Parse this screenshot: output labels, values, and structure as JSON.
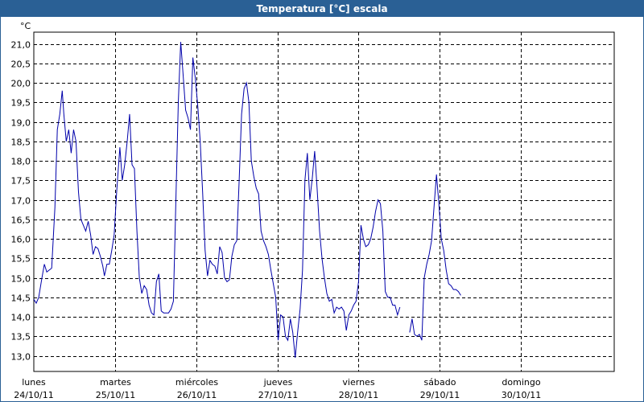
{
  "window": {
    "title": "Temperatura [°C] escala"
  },
  "chart_data": {
    "type": "line",
    "title": "Temperatura [°C] escala",
    "ylabel": "°C",
    "xlabel": "",
    "ylim": [
      12.6,
      21.3
    ],
    "xlim": [
      0,
      7.15
    ],
    "y_ticks": [
      "13,0",
      "13,5",
      "14,0",
      "14,5",
      "15,0",
      "15,5",
      "16,0",
      "16,5",
      "17,0",
      "17,5",
      "18,0",
      "18,5",
      "19,0",
      "19,5",
      "20,0",
      "20,5",
      "21,0"
    ],
    "y_tick_values": [
      13.0,
      13.5,
      14.0,
      14.5,
      15.0,
      15.5,
      16.0,
      16.5,
      17.0,
      17.5,
      18.0,
      18.5,
      19.0,
      19.5,
      20.0,
      20.5,
      21.0
    ],
    "x_ticks": [
      {
        "day": "lunes",
        "date": "24/10/11",
        "x": 0
      },
      {
        "day": "martes",
        "date": "25/10/11",
        "x": 1
      },
      {
        "day": "miércoles",
        "date": "26/10/11",
        "x": 2
      },
      {
        "day": "jueves",
        "date": "27/10/11",
        "x": 3
      },
      {
        "day": "viernes",
        "date": "28/10/11",
        "x": 4
      },
      {
        "day": "sábado",
        "date": "29/10/11",
        "x": 5
      },
      {
        "day": "domingo",
        "date": "30/10/11",
        "x": 6
      }
    ],
    "grid": true,
    "series": [
      {
        "color": "#0000aa",
        "segments": [
          [
            [
              0.0,
              14.45
            ],
            [
              0.03,
              14.35
            ],
            [
              0.06,
              14.5
            ],
            [
              0.1,
              15.0
            ],
            [
              0.13,
              15.35
            ],
            [
              0.16,
              15.15
            ],
            [
              0.19,
              15.2
            ],
            [
              0.22,
              15.25
            ],
            [
              0.26,
              16.8
            ],
            [
              0.29,
              18.8
            ],
            [
              0.32,
              19.2
            ],
            [
              0.35,
              19.8
            ],
            [
              0.37,
              19.2
            ],
            [
              0.4,
              18.5
            ],
            [
              0.43,
              18.8
            ],
            [
              0.46,
              18.2
            ],
            [
              0.49,
              18.8
            ],
            [
              0.52,
              18.5
            ],
            [
              0.55,
              17.2
            ],
            [
              0.58,
              16.5
            ],
            [
              0.61,
              16.35
            ],
            [
              0.64,
              16.2
            ],
            [
              0.67,
              16.45
            ],
            [
              0.7,
              16.1
            ],
            [
              0.73,
              15.6
            ],
            [
              0.76,
              15.8
            ],
            [
              0.79,
              15.75
            ],
            [
              0.82,
              15.55
            ],
            [
              0.85,
              15.3
            ],
            [
              0.87,
              15.05
            ],
            [
              0.9,
              15.35
            ],
            [
              0.93,
              15.35
            ],
            [
              0.96,
              15.7
            ],
            [
              0.99,
              16.1
            ],
            [
              1.02,
              17.2
            ],
            [
              1.06,
              18.35
            ],
            [
              1.09,
              17.5
            ],
            [
              1.12,
              17.9
            ],
            [
              1.15,
              18.5
            ],
            [
              1.18,
              19.2
            ],
            [
              1.21,
              17.9
            ],
            [
              1.24,
              17.8
            ],
            [
              1.27,
              16.2
            ],
            [
              1.3,
              15.0
            ],
            [
              1.33,
              14.6
            ],
            [
              1.36,
              14.8
            ],
            [
              1.39,
              14.7
            ],
            [
              1.42,
              14.3
            ],
            [
              1.45,
              14.1
            ],
            [
              1.48,
              14.05
            ],
            [
              1.51,
              14.9
            ],
            [
              1.54,
              15.1
            ],
            [
              1.57,
              14.15
            ],
            [
              1.6,
              14.1
            ],
            [
              1.63,
              14.1
            ],
            [
              1.66,
              14.1
            ],
            [
              1.69,
              14.2
            ],
            [
              1.72,
              14.4
            ],
            [
              1.75,
              17.0
            ],
            [
              1.78,
              19.5
            ],
            [
              1.81,
              21.05
            ],
            [
              1.84,
              20.2
            ],
            [
              1.87,
              19.3
            ],
            [
              1.9,
              19.1
            ],
            [
              1.93,
              18.8
            ],
            [
              1.96,
              20.65
            ],
            [
              1.99,
              20.1
            ],
            [
              2.02,
              19.4
            ],
            [
              2.05,
              18.5
            ],
            [
              2.08,
              17.2
            ],
            [
              2.11,
              15.7
            ],
            [
              2.14,
              15.05
            ],
            [
              2.17,
              15.45
            ],
            [
              2.2,
              15.35
            ],
            [
              2.23,
              15.3
            ],
            [
              2.26,
              15.1
            ],
            [
              2.29,
              15.8
            ],
            [
              2.32,
              15.65
            ],
            [
              2.35,
              15.0
            ],
            [
              2.38,
              14.9
            ],
            [
              2.41,
              14.95
            ],
            [
              2.44,
              15.55
            ],
            [
              2.47,
              15.85
            ],
            [
              2.5,
              15.95
            ],
            [
              2.53,
              17.5
            ],
            [
              2.56,
              19.2
            ],
            [
              2.59,
              19.85
            ],
            [
              2.62,
              20.0
            ],
            [
              2.65,
              19.5
            ],
            [
              2.68,
              18.0
            ],
            [
              2.71,
              17.6
            ],
            [
              2.74,
              17.3
            ],
            [
              2.77,
              17.15
            ],
            [
              2.8,
              16.2
            ],
            [
              2.83,
              15.95
            ],
            [
              2.86,
              15.8
            ],
            [
              2.89,
              15.6
            ],
            [
              2.92,
              15.2
            ],
            [
              2.95,
              14.85
            ],
            [
              2.98,
              14.5
            ],
            [
              3.01,
              13.4
            ],
            [
              3.04,
              14.05
            ],
            [
              3.07,
              14.0
            ],
            [
              3.1,
              13.5
            ],
            [
              3.13,
              13.4
            ],
            [
              3.16,
              13.95
            ],
            [
              3.19,
              13.6
            ],
            [
              3.22,
              12.95
            ],
            [
              3.25,
              13.6
            ],
            [
              3.28,
              14.2
            ],
            [
              3.31,
              15.2
            ],
            [
              3.34,
              17.5
            ],
            [
              3.37,
              18.2
            ],
            [
              3.4,
              17.0
            ],
            [
              3.43,
              17.55
            ],
            [
              3.46,
              18.25
            ],
            [
              3.49,
              17.3
            ],
            [
              3.52,
              16.2
            ],
            [
              3.55,
              15.5
            ],
            [
              3.58,
              15.0
            ],
            [
              3.61,
              14.6
            ],
            [
              3.64,
              14.4
            ],
            [
              3.67,
              14.45
            ],
            [
              3.7,
              14.1
            ],
            [
              3.73,
              14.25
            ],
            [
              3.76,
              14.2
            ],
            [
              3.79,
              14.25
            ],
            [
              3.82,
              14.15
            ],
            [
              3.85,
              13.65
            ],
            [
              3.88,
              14.05
            ],
            [
              3.91,
              14.15
            ],
            [
              3.94,
              14.3
            ],
            [
              3.97,
              14.4
            ],
            [
              4.0,
              14.9
            ],
            [
              4.03,
              16.35
            ],
            [
              4.06,
              16.0
            ],
            [
              4.09,
              15.8
            ],
            [
              4.12,
              15.85
            ],
            [
              4.15,
              16.0
            ],
            [
              4.18,
              16.3
            ],
            [
              4.21,
              16.7
            ],
            [
              4.24,
              17.0
            ],
            [
              4.27,
              16.9
            ],
            [
              4.3,
              16.2
            ],
            [
              4.33,
              14.65
            ],
            [
              4.36,
              14.5
            ],
            [
              4.39,
              14.5
            ],
            [
              4.42,
              14.3
            ],
            [
              4.45,
              14.3
            ],
            [
              4.48,
              14.05
            ],
            [
              4.51,
              14.25
            ]
          ],
          [
            [
              4.63,
              13.6
            ],
            [
              4.66,
              13.95
            ],
            [
              4.69,
              13.55
            ],
            [
              4.72,
              13.5
            ],
            [
              4.75,
              13.55
            ],
            [
              4.78,
              13.4
            ],
            [
              4.81,
              15.0
            ],
            [
              4.84,
              15.35
            ],
            [
              4.87,
              15.6
            ],
            [
              4.9,
              15.95
            ],
            [
              4.93,
              16.8
            ],
            [
              4.96,
              17.65
            ],
            [
              4.99,
              16.9
            ],
            [
              5.02,
              16.0
            ],
            [
              5.05,
              15.7
            ],
            [
              5.08,
              15.2
            ],
            [
              5.11,
              14.85
            ],
            [
              5.14,
              14.8
            ],
            [
              5.17,
              14.7
            ],
            [
              5.2,
              14.7
            ],
            [
              5.23,
              14.65
            ],
            [
              5.26,
              14.55
            ]
          ]
        ]
      }
    ]
  }
}
